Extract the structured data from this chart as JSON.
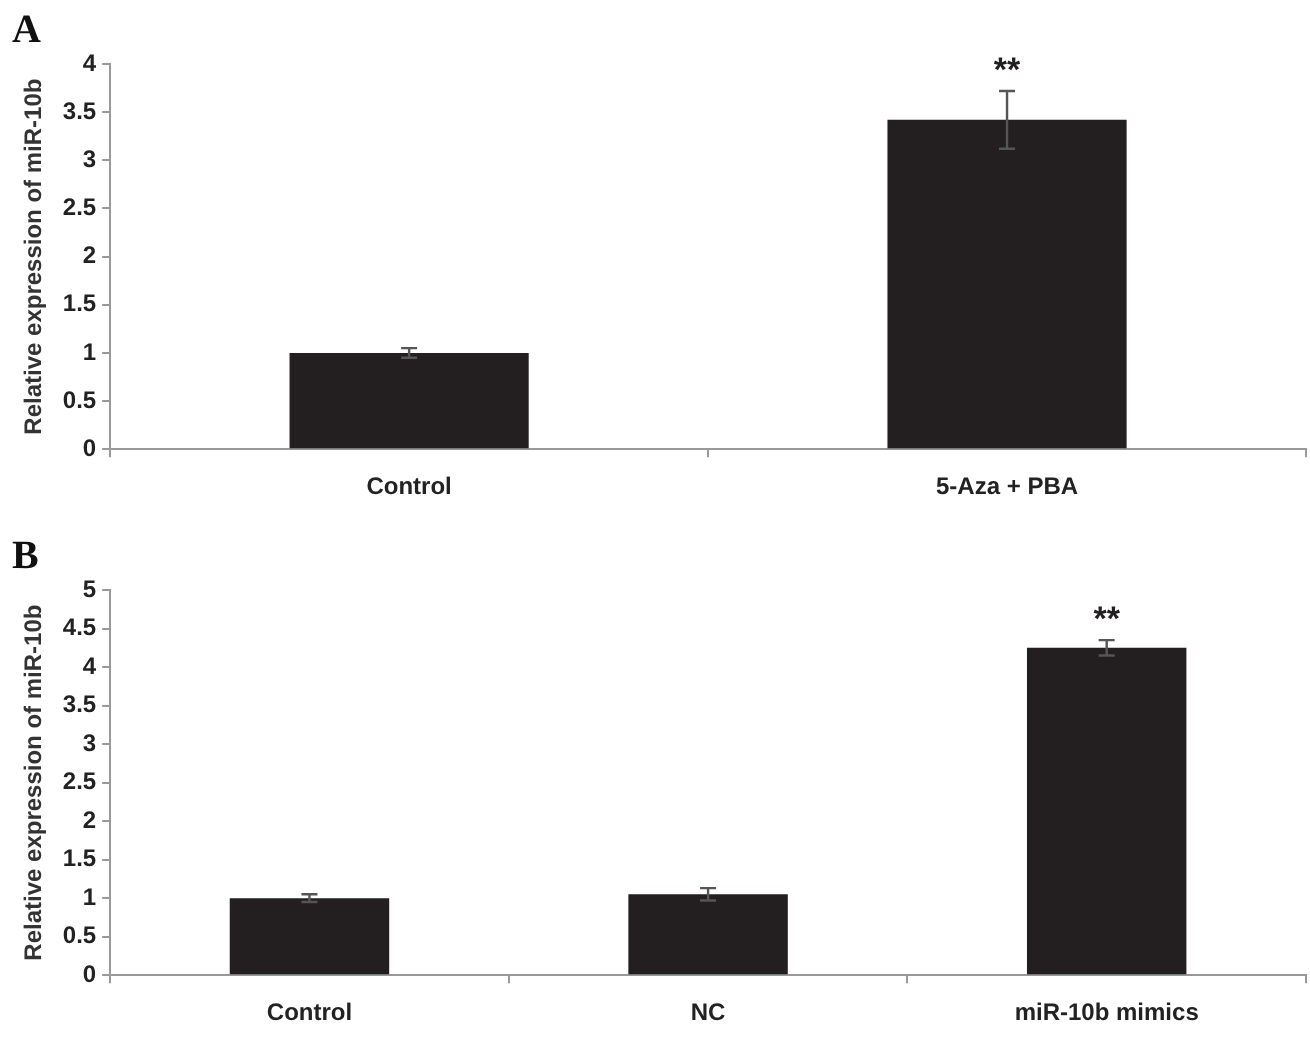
{
  "chart_data": [
    {
      "type": "bar",
      "title": "A",
      "ylabel": "Relative expression of miR-10b",
      "categories": [
        "Control",
        "5-Aza + PBA"
      ],
      "values": [
        1.0,
        3.42
      ],
      "errors": [
        0.05,
        0.3
      ],
      "color": "#231f20",
      "ylim": [
        0,
        4
      ],
      "yticks": [
        0,
        0.5,
        1,
        1.5,
        2,
        2.5,
        3,
        3.5,
        4
      ],
      "grid": false,
      "legend": false,
      "annotations": [
        {
          "text": "**",
          "x": "5-Aza + PBA",
          "y": 3.72
        }
      ]
    },
    {
      "type": "bar",
      "title": "B",
      "ylabel": "Relative expression of miR-10b",
      "categories": [
        "Control",
        "NC",
        "miR-10b mimics"
      ],
      "values": [
        1.0,
        1.05,
        4.25
      ],
      "errors": [
        0.05,
        0.08,
        0.1
      ],
      "color": "#231f20",
      "ylim": [
        0,
        5
      ],
      "yticks": [
        0,
        0.5,
        1,
        1.5,
        2,
        2.5,
        3,
        3.5,
        4,
        4.5,
        5
      ],
      "grid": false,
      "legend": false,
      "annotations": [
        {
          "text": "**",
          "x": "miR-10b mimics",
          "y": 4.35
        }
      ]
    }
  ]
}
